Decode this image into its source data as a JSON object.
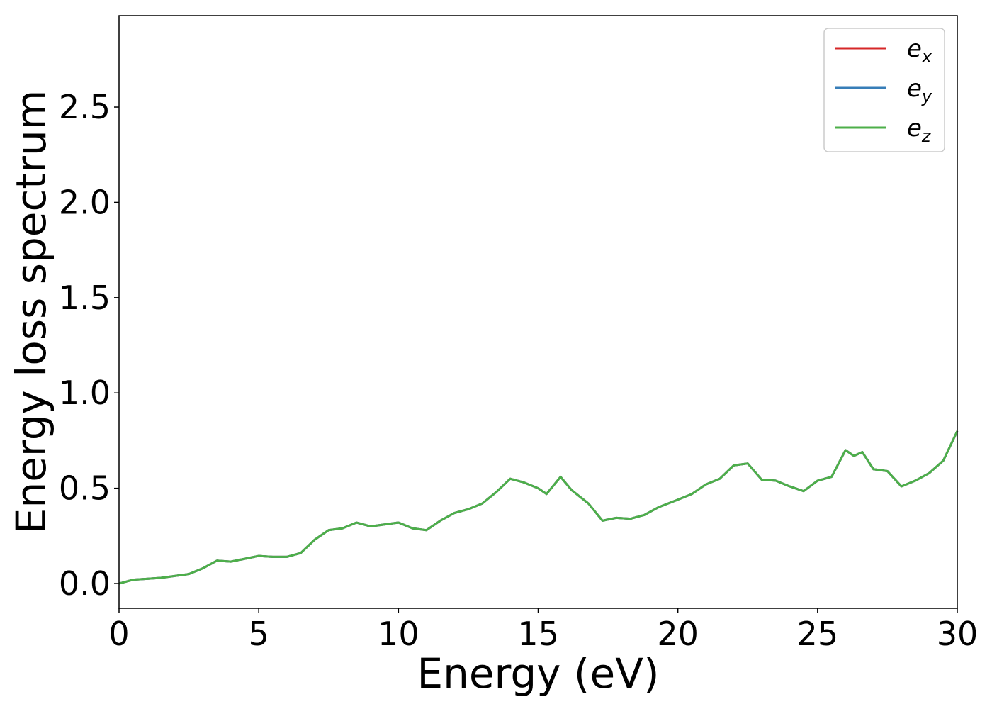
{
  "chart_data": {
    "type": "line",
    "title": "",
    "xlabel": "Energy (eV)",
    "ylabel": "Energy loss spectrum",
    "xlim": [
      0,
      30
    ],
    "ylim": [
      -0.13,
      2.98
    ],
    "xticks": [
      0,
      5,
      10,
      15,
      20,
      25,
      30
    ],
    "xtick_labels": [
      "0",
      "5",
      "10",
      "15",
      "20",
      "25",
      "30"
    ],
    "yticks": [
      0.0,
      0.5,
      1.0,
      1.5,
      2.0,
      2.5
    ],
    "ytick_labels": [
      "0.0",
      "0.5",
      "1.0",
      "1.5",
      "2.0",
      "2.5"
    ],
    "grid": false,
    "legend_position": "top-right",
    "series": [
      {
        "name": "e",
        "subscript": "x",
        "color": "#d62728",
        "x": [
          0,
          0.5,
          1,
          1.5,
          2,
          2.5,
          3,
          3.5,
          4,
          4.5,
          5,
          5.5,
          6,
          6.5,
          7,
          7.5,
          8,
          8.5,
          9,
          9.5,
          10,
          10.5,
          11,
          11.5,
          12,
          12.5,
          13,
          13.5,
          14,
          14.5,
          15,
          15.3,
          15.8,
          16.2,
          16.8,
          17.3,
          17.8,
          18.3,
          18.8,
          19.3,
          20,
          20.5,
          21,
          21.5,
          22,
          22.5,
          23,
          23.5,
          24,
          24.5,
          25,
          25.5,
          26,
          26.3,
          26.6,
          27,
          27.5,
          28,
          28.5,
          29,
          29.5,
          30
        ],
        "y": [
          0.0,
          0.02,
          0.025,
          0.03,
          0.04,
          0.05,
          0.08,
          0.12,
          0.115,
          0.13,
          0.145,
          0.14,
          0.14,
          0.16,
          0.23,
          0.28,
          0.29,
          0.32,
          0.3,
          0.31,
          0.32,
          0.29,
          0.28,
          0.33,
          0.37,
          0.39,
          0.42,
          0.48,
          0.55,
          0.53,
          0.5,
          0.47,
          0.56,
          0.49,
          0.42,
          0.33,
          0.345,
          0.34,
          0.36,
          0.4,
          0.44,
          0.47,
          0.52,
          0.55,
          0.62,
          0.63,
          0.545,
          0.54,
          0.51,
          0.485,
          0.54,
          0.56,
          0.7,
          0.67,
          0.69,
          0.6,
          0.59,
          0.51,
          0.54,
          0.58,
          0.645,
          0.8
        ]
      },
      {
        "name": "e",
        "subscript": "y",
        "color": "#377eb8",
        "x": [
          0,
          0.5,
          1,
          1.5,
          2,
          2.5,
          3,
          3.5,
          4,
          4.5,
          5,
          5.5,
          6,
          6.5,
          7,
          7.5,
          8,
          8.5,
          9,
          9.5,
          10,
          10.5,
          11,
          11.5,
          12,
          12.5,
          13,
          13.5,
          14,
          14.5,
          15,
          15.3,
          15.8,
          16.2,
          16.8,
          17.3,
          17.8,
          18.3,
          18.8,
          19.3,
          20,
          20.5,
          21,
          21.5,
          22,
          22.5,
          23,
          23.5,
          24,
          24.5,
          25,
          25.5,
          26,
          26.3,
          26.6,
          27,
          27.5,
          28,
          28.5,
          29,
          29.5,
          30
        ],
        "y": [
          0.0,
          0.02,
          0.025,
          0.03,
          0.04,
          0.05,
          0.08,
          0.12,
          0.115,
          0.13,
          0.145,
          0.14,
          0.14,
          0.16,
          0.23,
          0.28,
          0.29,
          0.32,
          0.3,
          0.31,
          0.32,
          0.29,
          0.28,
          0.33,
          0.37,
          0.39,
          0.42,
          0.48,
          0.55,
          0.53,
          0.5,
          0.47,
          0.56,
          0.49,
          0.42,
          0.33,
          0.345,
          0.34,
          0.36,
          0.4,
          0.44,
          0.47,
          0.52,
          0.55,
          0.62,
          0.63,
          0.545,
          0.54,
          0.51,
          0.485,
          0.54,
          0.56,
          0.7,
          0.67,
          0.69,
          0.6,
          0.59,
          0.51,
          0.54,
          0.58,
          0.645,
          0.8
        ]
      },
      {
        "name": "e",
        "subscript": "z",
        "color": "#4daf4a",
        "x": [
          0,
          0.5,
          1,
          1.5,
          2,
          2.5,
          3,
          3.5,
          4,
          4.5,
          5,
          5.5,
          6,
          6.5,
          7,
          7.5,
          8,
          8.5,
          9,
          9.5,
          10,
          10.5,
          11,
          11.5,
          12,
          12.5,
          13,
          13.5,
          14,
          14.5,
          15,
          15.3,
          15.8,
          16.2,
          16.8,
          17.3,
          17.8,
          18.3,
          18.8,
          19.3,
          20,
          20.5,
          21,
          21.5,
          22,
          22.5,
          23,
          23.5,
          24,
          24.5,
          25,
          25.5,
          26,
          26.3,
          26.6,
          27,
          27.5,
          28,
          28.5,
          29,
          29.5,
          30
        ],
        "y": [
          0.0,
          0.02,
          0.025,
          0.03,
          0.04,
          0.05,
          0.08,
          0.12,
          0.115,
          0.13,
          0.145,
          0.14,
          0.14,
          0.16,
          0.23,
          0.28,
          0.29,
          0.32,
          0.3,
          0.31,
          0.32,
          0.29,
          0.28,
          0.33,
          0.37,
          0.39,
          0.42,
          0.48,
          0.55,
          0.53,
          0.5,
          0.47,
          0.56,
          0.49,
          0.42,
          0.33,
          0.345,
          0.34,
          0.36,
          0.4,
          0.44,
          0.47,
          0.52,
          0.55,
          0.62,
          0.63,
          0.545,
          0.54,
          0.51,
          0.485,
          0.54,
          0.56,
          0.7,
          0.67,
          0.69,
          0.6,
          0.59,
          0.51,
          0.54,
          0.58,
          0.645,
          0.8
        ]
      }
    ]
  }
}
